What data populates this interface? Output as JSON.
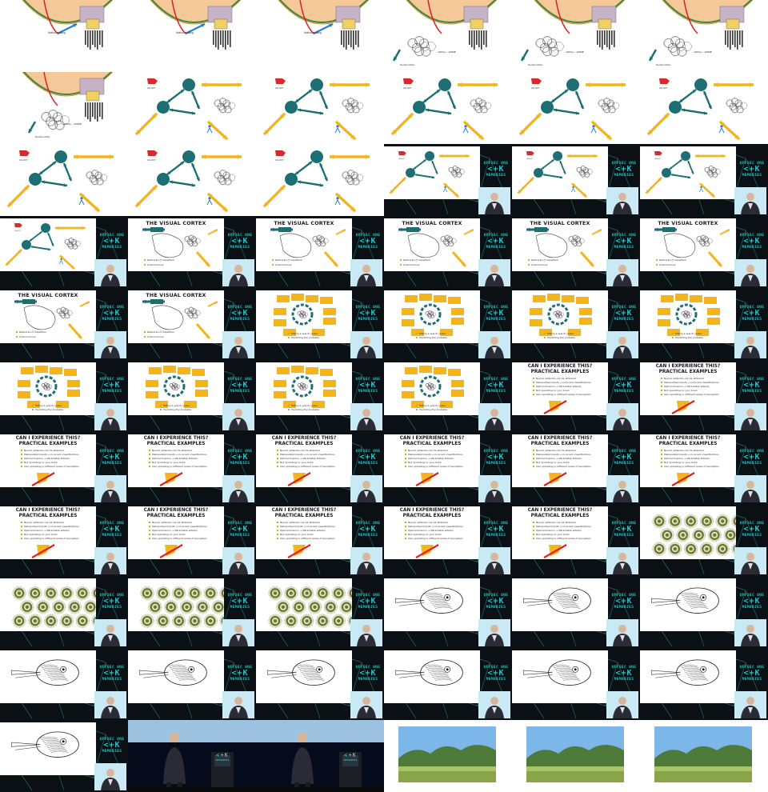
{
  "layout": {
    "columns": 6,
    "rows": 11
  },
  "colors": {
    "teal": "#1e6f73",
    "yellow": "#f4b41a",
    "logo_cyan": "#1fc4c7",
    "bullet_green": "#9cc42c",
    "pattern_bg": "#0a1014",
    "pattern_line": "#1a6e64"
  },
  "texts": {
    "visual_cortex_title": "THE VISUAL CORTEX",
    "ce_title_line1": "CAN I EXPERIENCE THIS?",
    "ce_title_line2": "PRACTICAL EXAMPLES",
    "vc_bullets": [
      "Networks of classifiers",
      "Subconscious"
    ],
    "yb_bullets": [
      "Sifting a search space",
      "Predicting the probable"
    ],
    "ce_bullets": [
      "Neural networks can be attacked",
      "Manipulated inputs → incorrect classifications",
      "Optical illusions → Attractable attacks",
      "Not operating on your brain",
      "Also operating in different areas of perception"
    ],
    "logo_l1": "OFFSEC ONE",
    "logo_l2": "<+K",
    "logo_l3": "MEMORIES"
  },
  "tiles": [
    "eye",
    "eye",
    "eye",
    "eyecloud",
    "eyecloud",
    "eyecloud",
    "eyecloud2",
    "tri",
    "tri",
    "tri",
    "tri",
    "tri",
    "tri",
    "tri",
    "tri",
    "tri-s",
    "tri-s",
    "tri-s",
    "tri-s",
    "vc-s",
    "vc-s",
    "vc-s",
    "vc-s",
    "vc-s",
    "vc-s",
    "vc-s",
    "yb-s",
    "yb-s",
    "yb-s",
    "yb-s",
    "yb-s",
    "yb-s",
    "yb-s",
    "yb-s",
    "ce-s",
    "ce-s",
    "ce-s",
    "ce-s",
    "ce-s",
    "ce-s",
    "ce-s",
    "ce-s",
    "ce-s",
    "ce-s",
    "ce-s",
    "ce-s",
    "ce-s",
    "op-s",
    "op-s",
    "op-s",
    "op-s",
    "sq-s",
    "sq-s",
    "sq-s",
    "sq-s",
    "sq-s",
    "sq-s",
    "sq-s",
    "sq-s",
    "sq-s",
    "sq-s",
    "stage",
    "stage",
    "land",
    "land",
    "land"
  ]
}
